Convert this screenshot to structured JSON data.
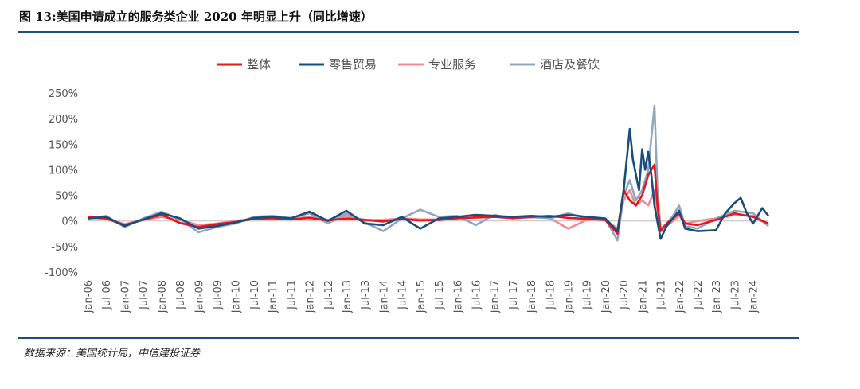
{
  "figure": {
    "title": "图 13:美国申请成立的服务类企业 2020 年明显上升（同比增速）",
    "source": "数据来源：美国统计局，中信建投证券"
  },
  "chart_data": {
    "type": "line",
    "y_ticks": [
      "250%",
      "200%",
      "150%",
      "100%",
      "50%",
      "0%",
      "-50%",
      "-100%"
    ],
    "ylim": [
      -100,
      250
    ],
    "x_ticks": [
      "Jan-06",
      "Jul-06",
      "Jan-07",
      "Jul-07",
      "Jan-08",
      "Jul-08",
      "Jan-09",
      "Jul-09",
      "Jan-10",
      "Jul-10",
      "Jan-11",
      "Jul-11",
      "Jan-12",
      "Jul-12",
      "Jan-13",
      "Jul-13",
      "Jan-14",
      "Jul-14",
      "Jan-15",
      "Jul-15",
      "Jan-16",
      "Jul-16",
      "Jan-17",
      "Jul-17",
      "Jan-18",
      "Jul-18",
      "Jan-19",
      "Jul-19",
      "Jan-20",
      "Jul-20",
      "Jan-21",
      "Jul-21",
      "Jan-22",
      "Jul-22",
      "Jan-23",
      "Jul-23",
      "Jan-24"
    ],
    "x_range": [
      "Jan-06",
      "Jun-24"
    ],
    "legend_position": "top",
    "grid": false,
    "series": [
      {
        "name": "整体",
        "color": "#e8141e",
        "points": [
          [
            "Jan-06",
            8
          ],
          [
            "Jul-06",
            5
          ],
          [
            "Jan-07",
            -8
          ],
          [
            "Jul-07",
            2
          ],
          [
            "Jan-08",
            12
          ],
          [
            "Jul-08",
            -4
          ],
          [
            "Jan-09",
            -12
          ],
          [
            "Jul-09",
            -6
          ],
          [
            "Jan-10",
            -2
          ],
          [
            "Jul-10",
            4
          ],
          [
            "Jan-11",
            5
          ],
          [
            "Jul-11",
            3
          ],
          [
            "Jan-12",
            6
          ],
          [
            "Jul-12",
            1
          ],
          [
            "Jan-13",
            5
          ],
          [
            "Jul-13",
            2
          ],
          [
            "Jan-14",
            -1
          ],
          [
            "Jul-14",
            4
          ],
          [
            "Jan-15",
            1
          ],
          [
            "Jul-15",
            2
          ],
          [
            "Jan-16",
            5
          ],
          [
            "Jul-16",
            7
          ],
          [
            "Jan-17",
            8
          ],
          [
            "Jul-17",
            6
          ],
          [
            "Jan-18",
            8
          ],
          [
            "Jul-18",
            10
          ],
          [
            "Jan-19",
            6
          ],
          [
            "Jul-19",
            4
          ],
          [
            "Jan-20",
            2
          ],
          [
            "May-20",
            -25
          ],
          [
            "Jul-20",
            60
          ],
          [
            "Sep-20",
            40
          ],
          [
            "Nov-20",
            30
          ],
          [
            "Jan-21",
            50
          ],
          [
            "Mar-21",
            90
          ],
          [
            "May-21",
            110
          ],
          [
            "Jun-21",
            30
          ],
          [
            "Jul-21",
            -20
          ],
          [
            "Sep-21",
            -5
          ],
          [
            "Nov-21",
            5
          ],
          [
            "Jan-22",
            15
          ],
          [
            "Mar-22",
            -5
          ],
          [
            "Jul-22",
            -8
          ],
          [
            "Jan-23",
            2
          ],
          [
            "Jul-23",
            15
          ],
          [
            "Jan-24",
            8
          ],
          [
            "Jun-24",
            -5
          ]
        ]
      },
      {
        "name": "零售贸易",
        "color": "#1a4d7c",
        "points": [
          [
            "Jan-06",
            5
          ],
          [
            "Jul-06",
            8
          ],
          [
            "Jan-07",
            -10
          ],
          [
            "Jul-07",
            3
          ],
          [
            "Jan-08",
            15
          ],
          [
            "Jul-08",
            5
          ],
          [
            "Jan-09",
            -15
          ],
          [
            "Jul-09",
            -10
          ],
          [
            "Jan-10",
            -3
          ],
          [
            "Jul-10",
            6
          ],
          [
            "Jan-11",
            8
          ],
          [
            "Jul-11",
            5
          ],
          [
            "Jan-12",
            18
          ],
          [
            "Jul-12",
            0
          ],
          [
            "Jan-13",
            20
          ],
          [
            "Jul-13",
            -5
          ],
          [
            "Jan-14",
            -8
          ],
          [
            "Jul-14",
            8
          ],
          [
            "Jan-15",
            -15
          ],
          [
            "Jul-15",
            5
          ],
          [
            "Jan-16",
            8
          ],
          [
            "Jul-16",
            12
          ],
          [
            "Jan-17",
            10
          ],
          [
            "Jul-17",
            8
          ],
          [
            "Jan-18",
            10
          ],
          [
            "Jul-18",
            8
          ],
          [
            "Jan-19",
            12
          ],
          [
            "Jul-19",
            8
          ],
          [
            "Jan-20",
            5
          ],
          [
            "May-20",
            -20
          ],
          [
            "Jul-20",
            60
          ],
          [
            "Sep-20",
            180
          ],
          [
            "Oct-20",
            120
          ],
          [
            "Dec-20",
            60
          ],
          [
            "Jan-21",
            140
          ],
          [
            "Feb-21",
            100
          ],
          [
            "Mar-21",
            135
          ],
          [
            "Apr-21",
            90
          ],
          [
            "May-21",
            30
          ],
          [
            "Jul-21",
            -35
          ],
          [
            "Sep-21",
            -10
          ],
          [
            "Nov-21",
            5
          ],
          [
            "Jan-22",
            20
          ],
          [
            "Mar-22",
            -15
          ],
          [
            "Jul-22",
            -20
          ],
          [
            "Jan-23",
            -18
          ],
          [
            "Apr-23",
            15
          ],
          [
            "Jul-23",
            35
          ],
          [
            "Sep-23",
            45
          ],
          [
            "Nov-23",
            15
          ],
          [
            "Jan-24",
            -5
          ],
          [
            "Apr-24",
            25
          ],
          [
            "Jun-24",
            10
          ]
        ]
      },
      {
        "name": "专业服务",
        "color": "#f08c91",
        "points": [
          [
            "Jan-06",
            6
          ],
          [
            "Jul-06",
            4
          ],
          [
            "Jan-07",
            -6
          ],
          [
            "Jul-07",
            2
          ],
          [
            "Jan-08",
            8
          ],
          [
            "Jul-08",
            2
          ],
          [
            "Jan-09",
            -8
          ],
          [
            "Jul-09",
            -5
          ],
          [
            "Jan-10",
            0
          ],
          [
            "Jul-10",
            5
          ],
          [
            "Jan-11",
            6
          ],
          [
            "Jul-11",
            4
          ],
          [
            "Jan-12",
            8
          ],
          [
            "Jul-12",
            2
          ],
          [
            "Jan-13",
            10
          ],
          [
            "Jul-13",
            2
          ],
          [
            "Jan-14",
            2
          ],
          [
            "Jul-14",
            5
          ],
          [
            "Jan-15",
            3
          ],
          [
            "Jul-15",
            3
          ],
          [
            "Jan-16",
            6
          ],
          [
            "Jul-16",
            6
          ],
          [
            "Jan-17",
            8
          ],
          [
            "Jul-17",
            5
          ],
          [
            "Jan-18",
            7
          ],
          [
            "Jul-18",
            6
          ],
          [
            "Jan-19",
            -15
          ],
          [
            "Jul-19",
            2
          ],
          [
            "Jan-20",
            3
          ],
          [
            "May-20",
            -15
          ],
          [
            "Jul-20",
            40
          ],
          [
            "Sep-20",
            60
          ],
          [
            "Nov-20",
            30
          ],
          [
            "Jan-21",
            40
          ],
          [
            "Mar-21",
            30
          ],
          [
            "May-21",
            60
          ],
          [
            "Jun-21",
            20
          ],
          [
            "Jul-21",
            -15
          ],
          [
            "Sep-21",
            -10
          ],
          [
            "Nov-21",
            0
          ],
          [
            "Jan-22",
            10
          ],
          [
            "Mar-22",
            -5
          ],
          [
            "Jul-22",
            0
          ],
          [
            "Jan-23",
            5
          ],
          [
            "Jul-23",
            12
          ],
          [
            "Jan-24",
            10
          ],
          [
            "Jun-24",
            -8
          ]
        ]
      },
      {
        "name": "酒店及餐饮",
        "color": "#8fa8bf",
        "points": [
          [
            "Jan-06",
            4
          ],
          [
            "Jul-06",
            10
          ],
          [
            "Jan-07",
            -12
          ],
          [
            "Jul-07",
            5
          ],
          [
            "Jan-08",
            18
          ],
          [
            "Jul-08",
            3
          ],
          [
            "Jan-09",
            -22
          ],
          [
            "Jul-09",
            -12
          ],
          [
            "Jan-10",
            -5
          ],
          [
            "Jul-10",
            8
          ],
          [
            "Jan-11",
            10
          ],
          [
            "Jul-11",
            6
          ],
          [
            "Jan-12",
            15
          ],
          [
            "Jul-12",
            -5
          ],
          [
            "Jan-13",
            15
          ],
          [
            "Jul-13",
            -3
          ],
          [
            "Jan-14",
            -20
          ],
          [
            "Jul-14",
            5
          ],
          [
            "Jan-15",
            22
          ],
          [
            "Jul-15",
            8
          ],
          [
            "Jan-16",
            10
          ],
          [
            "Jul-16",
            -8
          ],
          [
            "Jan-17",
            12
          ],
          [
            "Jul-17",
            5
          ],
          [
            "Jan-18",
            8
          ],
          [
            "Jul-18",
            5
          ],
          [
            "Jan-19",
            15
          ],
          [
            "Jul-19",
            6
          ],
          [
            "Jan-20",
            4
          ],
          [
            "May-20",
            -38
          ],
          [
            "Jul-20",
            50
          ],
          [
            "Sep-20",
            80
          ],
          [
            "Nov-20",
            40
          ],
          [
            "Jan-21",
            60
          ],
          [
            "Mar-21",
            100
          ],
          [
            "May-21",
            225
          ],
          [
            "Jun-21",
            60
          ],
          [
            "Jul-21",
            -15
          ],
          [
            "Sep-21",
            -5
          ],
          [
            "Nov-21",
            10
          ],
          [
            "Jan-22",
            30
          ],
          [
            "Mar-22",
            -10
          ],
          [
            "Jul-22",
            -15
          ],
          [
            "Jan-23",
            5
          ],
          [
            "Jul-23",
            20
          ],
          [
            "Jan-24",
            15
          ],
          [
            "Jun-24",
            -10
          ]
        ]
      }
    ]
  }
}
